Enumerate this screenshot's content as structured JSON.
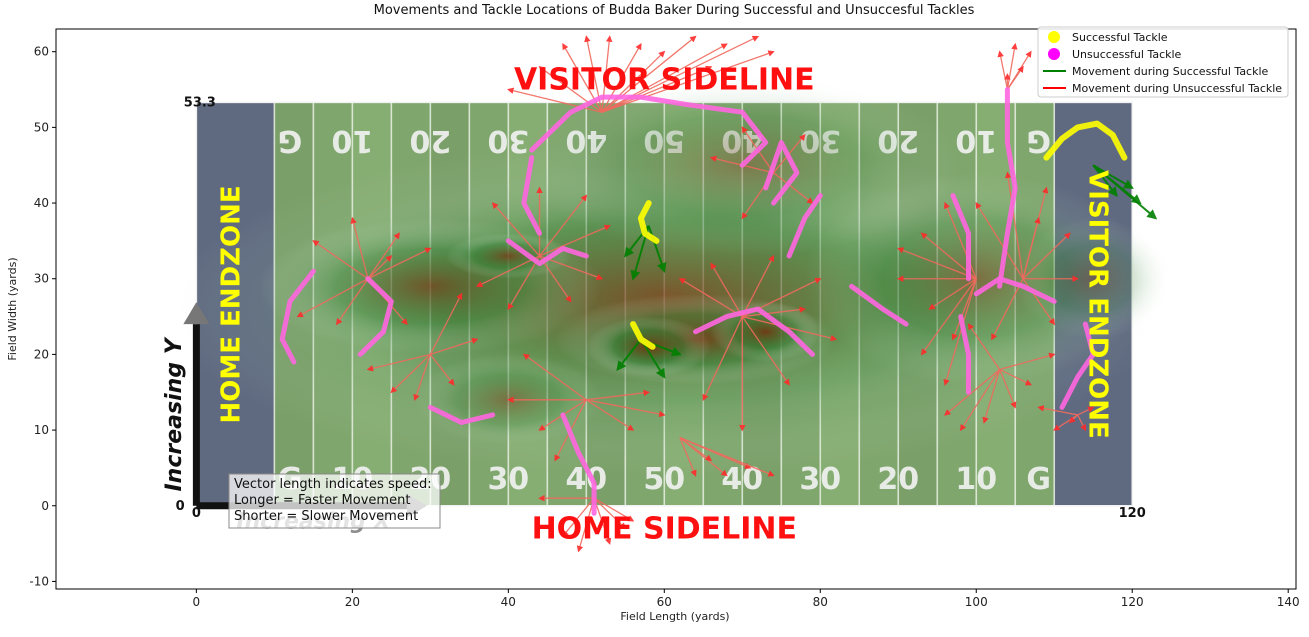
{
  "chart_data": {
    "type": "scatter",
    "title": "Movements and Tackle Locations of Budda Baker During Successful and Unsuccesful Tackles",
    "xlabel": "Field Length (yards)",
    "ylabel": "Field Width (yards)",
    "xlim": [
      -18,
      141
    ],
    "ylim": [
      -11,
      63
    ],
    "xticks": [
      0,
      20,
      40,
      60,
      80,
      100,
      120,
      140
    ],
    "yticks": [
      -10,
      0,
      10,
      20,
      30,
      40,
      50,
      60
    ],
    "grid": false,
    "legend_position": "top-right",
    "legend": [
      {
        "label": "Successful Tackle",
        "kind": "marker",
        "color": "#ffff00"
      },
      {
        "label": "Unsuccessful Tackle",
        "kind": "marker",
        "color": "#ff00ff"
      },
      {
        "label": "Movement during Successful Tackle",
        "kind": "line",
        "color": "#008000"
      },
      {
        "label": "Movement during Unsuccessful Tackle",
        "kind": "line",
        "color": "#ff0000"
      }
    ],
    "field_labels": {
      "length_end": "120",
      "width_end": "53.3",
      "origin": "0",
      "origin_y": "0",
      "home_endzone": "HOME ENDZONE",
      "visitor_endzone": "VISITOR ENDZONE",
      "home_sideline": "HOME SIDELINE",
      "visitor_sideline": "VISITOR SIDELINE",
      "increasing_y": "Increasing Y",
      "increasing_x": "Increasing X",
      "bottom_numbers": [
        "G",
        "10",
        "20",
        "30",
        "40",
        "50",
        "40",
        "30",
        "20",
        "10",
        "G"
      ],
      "top_numbers": [
        "G",
        "10",
        "20",
        "30",
        "40",
        "50",
        "40",
        "30",
        "20",
        "10",
        "G"
      ]
    },
    "annotation": [
      "Vector length indicates speed:",
      "Longer = Faster Movement",
      "Shorter = Slower Movement"
    ],
    "series": [
      {
        "name": "Successful Tackle",
        "kind": "path",
        "color": "#ffff00",
        "tracks": [
          [
            [
              109,
              46
            ],
            [
              111,
              48.5
            ],
            [
              113,
              50
            ],
            [
              115.5,
              50.5
            ],
            [
              117.5,
              49
            ],
            [
              119,
              46
            ]
          ],
          [
            [
              58,
              40
            ],
            [
              57,
              38
            ],
            [
              57.5,
              36
            ],
            [
              59,
              35
            ]
          ],
          [
            [
              56,
              24
            ],
            [
              57,
              22
            ],
            [
              58.5,
              21
            ]
          ]
        ]
      },
      {
        "name": "Unsuccessful Tackle",
        "kind": "path",
        "color": "#ff00ff",
        "tracks": [
          [
            [
              15,
              31
            ],
            [
              12,
              27
            ],
            [
              11,
              22
            ],
            [
              12.5,
              19
            ]
          ],
          [
            [
              22,
              30
            ],
            [
              25,
              27
            ],
            [
              24,
              23
            ],
            [
              21,
              20
            ]
          ],
          [
            [
              40,
              35
            ],
            [
              44,
              32
            ],
            [
              47,
              34
            ],
            [
              50,
              33
            ]
          ],
          [
            [
              43,
              46
            ],
            [
              42,
              40
            ],
            [
              44,
              36
            ]
          ],
          [
            [
              43,
              47
            ],
            [
              48,
              52
            ],
            [
              52,
              54
            ],
            [
              57,
              54
            ],
            [
              63,
              53
            ],
            [
              70,
              52
            ],
            [
              73,
              48
            ],
            [
              70,
              45
            ]
          ],
          [
            [
              47,
              12
            ],
            [
              49,
              7
            ],
            [
              51,
              3
            ],
            [
              51,
              -1
            ]
          ],
          [
            [
              64,
              23
            ],
            [
              68,
              25
            ],
            [
              72,
              26
            ],
            [
              76,
              23
            ],
            [
              79,
              20
            ]
          ],
          [
            [
              74,
              40
            ],
            [
              77,
              44
            ],
            [
              75,
              48
            ],
            [
              73,
              42
            ]
          ],
          [
            [
              80,
              41
            ],
            [
              78,
              38
            ],
            [
              76,
              33
            ]
          ],
          [
            [
              97,
              41
            ],
            [
              99,
              36
            ],
            [
              99,
              30
            ]
          ],
          [
            [
              100,
              28
            ],
            [
              103,
              30
            ],
            [
              106,
              29
            ],
            [
              110,
              27
            ]
          ],
          [
            [
              104,
              55
            ],
            [
              104,
              48
            ],
            [
              105,
              42
            ],
            [
              104,
              36
            ],
            [
              103,
              29
            ]
          ],
          [
            [
              98,
              25
            ],
            [
              99,
              20
            ],
            [
              99,
              15
            ]
          ],
          [
            [
              114,
              24
            ],
            [
              115,
              20
            ],
            [
              113,
              17
            ],
            [
              111,
              13
            ]
          ],
          [
            [
              84,
              29
            ],
            [
              88,
              26
            ],
            [
              91,
              24
            ]
          ],
          [
            [
              30,
              13
            ],
            [
              34,
              11
            ],
            [
              38,
              12
            ]
          ]
        ]
      },
      {
        "name": "Movement during Successful Tackle",
        "kind": "vectors",
        "color": "#008000",
        "clusters": [
          {
            "base": [
              115,
              45
            ],
            "tips": [
              [
                121,
                40
              ],
              [
                123,
                38
              ],
              [
                120,
                42
              ],
              [
                118,
                41
              ]
            ]
          },
          {
            "base": [
              58,
              37
            ],
            "tips": [
              [
                55,
                33
              ],
              [
                56,
                30
              ],
              [
                60,
                31
              ]
            ]
          },
          {
            "base": [
              57,
              22
            ],
            "tips": [
              [
                54,
                18
              ],
              [
                60,
                17
              ],
              [
                62,
                20
              ]
            ]
          }
        ]
      },
      {
        "name": "Movement during Unsuccessful Tackle",
        "kind": "vectors",
        "color": "#ff0000",
        "clusters": [
          {
            "base": [
              52,
              52
            ],
            "tips": [
              [
                40,
                55
              ],
              [
                44,
                58
              ],
              [
                47,
                61
              ],
              [
                50,
                62
              ],
              [
                53,
                62
              ],
              [
                57,
                61
              ],
              [
                60,
                60
              ],
              [
                64,
                62
              ],
              [
                68,
                61
              ],
              [
                72,
                62
              ],
              [
                74,
                60
              ],
              [
                66,
                58
              ]
            ]
          },
          {
            "base": [
              104,
              55
            ],
            "tips": [
              [
                103,
                60
              ],
              [
                105,
                61
              ],
              [
                107,
                60
              ],
              [
                104,
                57
              ],
              [
                106,
                58
              ]
            ]
          },
          {
            "base": [
              51,
              1
            ],
            "tips": [
              [
                44,
                1
              ],
              [
                49,
                -6
              ],
              [
                53,
                -5
              ],
              [
                55,
                -3
              ],
              [
                47,
                -4
              ],
              [
                56,
                -2
              ]
            ]
          },
          {
            "base": [
              113,
              12
            ],
            "tips": [
              [
                108,
                13
              ],
              [
                110,
                10
              ],
              [
                112,
                11
              ],
              [
                115,
                13
              ],
              [
                114,
                10
              ]
            ]
          },
          {
            "base": [
              22,
              30
            ],
            "tips": [
              [
                15,
                35
              ],
              [
                20,
                38
              ],
              [
                26,
                36
              ],
              [
                30,
                34
              ],
              [
                18,
                24
              ],
              [
                13,
                25
              ],
              [
                27,
                24
              ],
              [
                25,
                33
              ]
            ]
          },
          {
            "base": [
              44,
              33
            ],
            "tips": [
              [
                38,
                40
              ],
              [
                44,
                42
              ],
              [
                50,
                41
              ],
              [
                53,
                37
              ],
              [
                36,
                29
              ],
              [
                40,
                26
              ],
              [
                48,
                27
              ],
              [
                52,
                30
              ]
            ]
          },
          {
            "base": [
              50,
              14
            ],
            "tips": [
              [
                42,
                20
              ],
              [
                44,
                10
              ],
              [
                40,
                14
              ],
              [
                56,
                10
              ],
              [
                58,
                15
              ],
              [
                46,
                6
              ],
              [
                60,
                12
              ]
            ]
          },
          {
            "base": [
              70,
              25
            ],
            "tips": [
              [
                62,
                30
              ],
              [
                66,
                32
              ],
              [
                74,
                33
              ],
              [
                80,
                30
              ],
              [
                82,
                22
              ],
              [
                76,
                16
              ],
              [
                70,
                10
              ],
              [
                65,
                14
              ],
              [
                78,
                26
              ]
            ]
          },
          {
            "base": [
              74,
              44
            ],
            "tips": [
              [
                66,
                46
              ],
              [
                70,
                50
              ],
              [
                78,
                49
              ],
              [
                79,
                40
              ],
              [
                70,
                38
              ]
            ]
          },
          {
            "base": [
              100,
              30
            ],
            "tips": [
              [
                93,
                36
              ],
              [
                96,
                40
              ],
              [
                90,
                34
              ],
              [
                94,
                26
              ],
              [
                97,
                22
              ],
              [
                93,
                20
              ],
              [
                96,
                16
              ],
              [
                90,
                30
              ]
            ]
          },
          {
            "base": [
              106,
              30
            ],
            "tips": [
              [
                100,
                40
              ],
              [
                104,
                44
              ],
              [
                109,
                42
              ],
              [
                112,
                36
              ],
              [
                113,
                30
              ],
              [
                110,
                24
              ],
              [
                102,
                22
              ],
              [
                108,
                38
              ]
            ]
          },
          {
            "base": [
              103,
              18
            ],
            "tips": [
              [
                96,
                12
              ],
              [
                98,
                10
              ],
              [
                101,
                11
              ],
              [
                105,
                13
              ],
              [
                107,
                16
              ],
              [
                110,
                20
              ],
              [
                99,
                24
              ]
            ]
          },
          {
            "base": [
              62,
              9
            ],
            "tips": [
              [
                64,
                4
              ],
              [
                68,
                4
              ],
              [
                71,
                5
              ],
              [
                74,
                4
              ],
              [
                66,
                6
              ]
            ]
          },
          {
            "base": [
              30,
              20
            ],
            "tips": [
              [
                25,
                15
              ],
              [
                28,
                14
              ],
              [
                33,
                16
              ],
              [
                36,
                22
              ],
              [
                22,
                18
              ],
              [
                34,
                28
              ]
            ]
          }
        ]
      }
    ]
  }
}
